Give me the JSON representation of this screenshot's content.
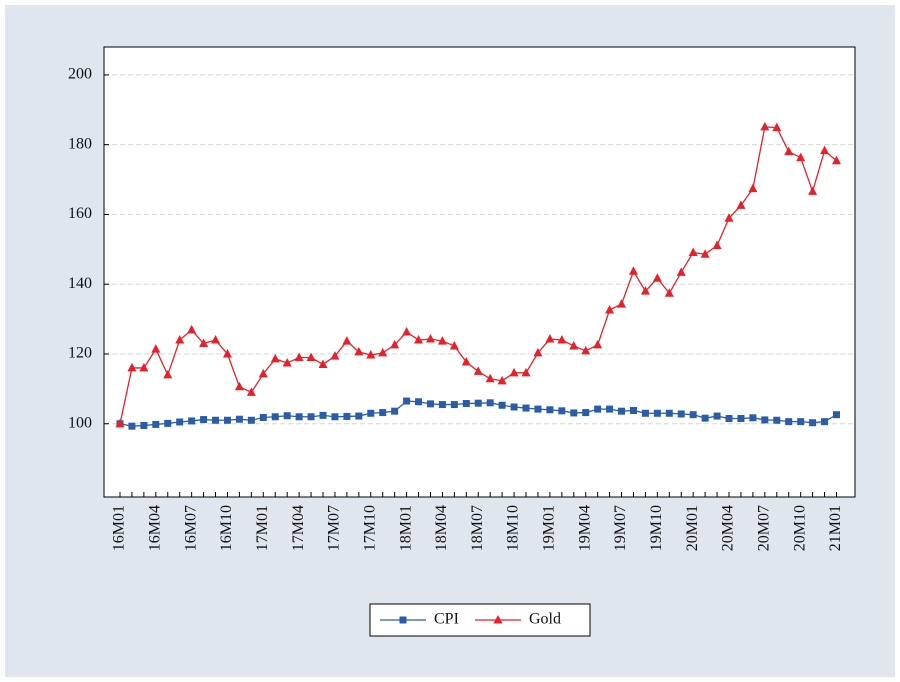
{
  "chart_data": {
    "type": "line",
    "categories": [
      "16M01",
      null,
      null,
      "16M04",
      null,
      null,
      "16M07",
      null,
      null,
      "16M10",
      null,
      null,
      "17M01",
      null,
      null,
      "17M04",
      null,
      null,
      "17M07",
      null,
      null,
      "17M10",
      null,
      null,
      "18M01",
      null,
      null,
      "18M04",
      null,
      null,
      "18M07",
      null,
      null,
      "18M10",
      null,
      null,
      "19M01",
      null,
      null,
      "19M04",
      null,
      null,
      "19M07",
      null,
      null,
      "19M10",
      null,
      null,
      "20M01",
      null,
      null,
      "20M04",
      null,
      null,
      "20M07",
      null,
      null,
      "20M10",
      null,
      null,
      "21M01"
    ],
    "series": [
      {
        "name": "CPI",
        "color": "#2a5caa",
        "marker": "square",
        "values": [
          100,
          99.3,
          99.5,
          99.8,
          100.1,
          100.5,
          100.8,
          101.2,
          101.0,
          101.0,
          101.3,
          101.0,
          101.8,
          102.0,
          102.3,
          102.0,
          102.0,
          102.4,
          102.0,
          102.1,
          102.2,
          103.0,
          103.2,
          103.6,
          106.5,
          106.3,
          105.7,
          105.5,
          105.5,
          105.8,
          105.9,
          106.0,
          105.3,
          104.8,
          104.5,
          104.2,
          104.0,
          103.7,
          103.1,
          103.2,
          104.2,
          104.2,
          103.6,
          103.8,
          103.0,
          103.0,
          103.0,
          102.8,
          102.6,
          101.6,
          102.2,
          101.5,
          101.5,
          101.7,
          101.1,
          101.0,
          100.6,
          100.6,
          100.3,
          100.6,
          102.6
        ]
      },
      {
        "name": "Gold",
        "color": "#e8202a",
        "marker": "triangle",
        "values": [
          100,
          116,
          116,
          121.4,
          114,
          124,
          126.9,
          123,
          124,
          120,
          110.6,
          109,
          114.3,
          118.6,
          117.4,
          119,
          119,
          117,
          119.4,
          123.7,
          120.6,
          119.7,
          120.3,
          122.6,
          126.3,
          124,
          124.3,
          123.7,
          122.3,
          117.7,
          115,
          112.9,
          112.3,
          114.6,
          114.6,
          120.3,
          124.3,
          124,
          122.3,
          120.9,
          122.6,
          132.6,
          134.3,
          143.7,
          138,
          141.7,
          137.4,
          143.4,
          149.1,
          148.6,
          151.1,
          158.9,
          162.6,
          167.4,
          185.1,
          184.9,
          178,
          176.3,
          166.6,
          178.3,
          175.4
        ]
      }
    ],
    "ylim": [
      79,
      208
    ],
    "yticks": [
      100,
      120,
      140,
      160,
      180,
      200
    ],
    "grid": true,
    "legend": "bottom"
  }
}
